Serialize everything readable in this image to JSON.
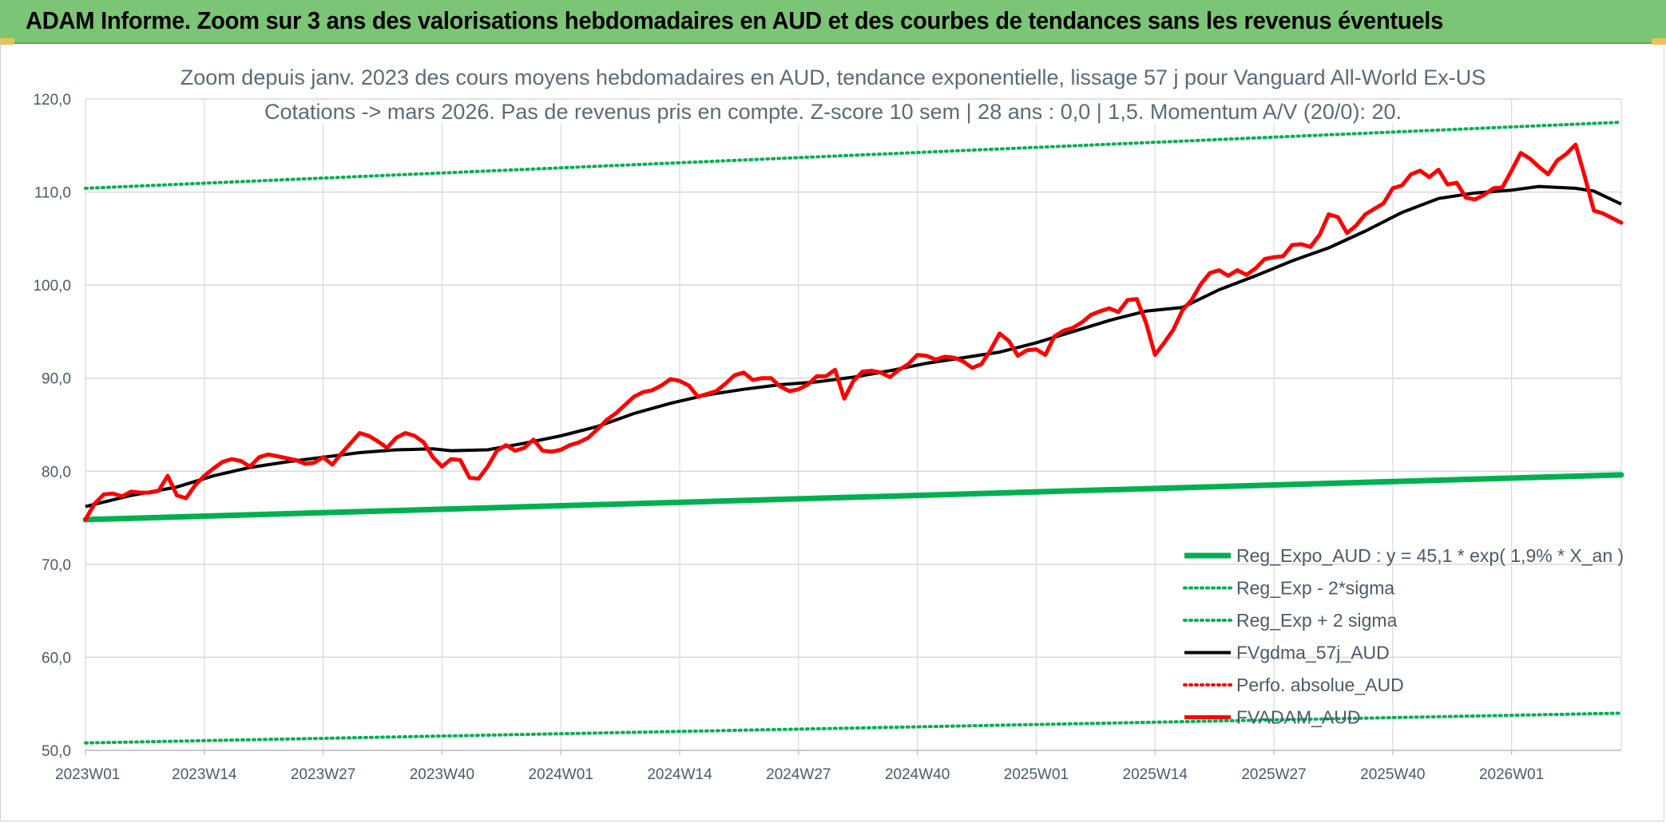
{
  "banner": {
    "title": "ADAM Informe. Zoom sur 3 ans des valorisations hebdomadaires en AUD et des courbes de tendances sans les revenus éventuels"
  },
  "colors": {
    "banner": "#7cc576",
    "trend_green": "#00b050",
    "dotted_green": "#00b050",
    "moving_avg": "#000000",
    "price_red": "#ff0000",
    "grid": "#d9d9d9",
    "axis_text": "#4a5a6a"
  },
  "chart_data": {
    "type": "line",
    "title_line1": "Zoom depuis janv. 2023 des cours moyens hebdomadaires en AUD, tendance exponentielle, lissage 57 j pour Vanguard All-World Ex-US",
    "title_line2": "Cotations -> mars 2026. Pas de revenus pris en compte. Z-score 10 sem | 28 ans : 0,0 | 1,5. Momentum A/V (20/0): 20.",
    "ylim": [
      50,
      120
    ],
    "yticks": [
      "50,0",
      "60,0",
      "70,0",
      "80,0",
      "90,0",
      "100,0",
      "110,0",
      "120,0"
    ],
    "ytick_values": [
      50,
      60,
      70,
      80,
      90,
      100,
      110,
      120
    ],
    "x_week_count": 169,
    "xtick_labels": [
      "2023W01",
      "2023W14",
      "2023W27",
      "2023W40",
      "2024W01",
      "2024W14",
      "2024W27",
      "2024W40",
      "2025W01",
      "2025W14",
      "2025W27",
      "2025W40",
      "2026W01"
    ],
    "xtick_index": [
      0,
      13,
      26,
      39,
      52,
      65,
      78,
      91,
      104,
      117,
      130,
      143,
      156
    ],
    "grid": true,
    "legend_position": "bottom-right",
    "series": [
      {
        "name": "Reg_Expo_AUD : y = 45,1 * exp( 1,9% *  X_an )",
        "style": "thick",
        "color": "#00b050",
        "points": [
          [
            0,
            74.8
          ],
          [
            168,
            79.6
          ]
        ]
      },
      {
        "name": "Reg_Exp - 2*sigma",
        "style": "dotted",
        "color": "#00b050",
        "points": [
          [
            0,
            50.8
          ],
          [
            168,
            54.0
          ]
        ]
      },
      {
        "name": "Reg_Exp + 2 sigma",
        "style": "dotted",
        "color": "#00b050",
        "points": [
          [
            0,
            110.4
          ],
          [
            168,
            117.5
          ]
        ]
      },
      {
        "name": "FVgdma_57j_AUD",
        "style": "solid",
        "color": "#000000",
        "points": [
          [
            0,
            76.2
          ],
          [
            5,
            77.4
          ],
          [
            10,
            78.3
          ],
          [
            14,
            79.5
          ],
          [
            18,
            80.4
          ],
          [
            22,
            81.0
          ],
          [
            26,
            81.5
          ],
          [
            30,
            82.0
          ],
          [
            34,
            82.3
          ],
          [
            38,
            82.4
          ],
          [
            40,
            82.2
          ],
          [
            44,
            82.3
          ],
          [
            48,
            83.0
          ],
          [
            52,
            83.8
          ],
          [
            56,
            84.8
          ],
          [
            60,
            86.2
          ],
          [
            64,
            87.3
          ],
          [
            68,
            88.2
          ],
          [
            72,
            88.8
          ],
          [
            76,
            89.3
          ],
          [
            80,
            89.6
          ],
          [
            84,
            90.1
          ],
          [
            88,
            90.8
          ],
          [
            92,
            91.6
          ],
          [
            96,
            92.2
          ],
          [
            100,
            92.8
          ],
          [
            104,
            93.8
          ],
          [
            108,
            95.0
          ],
          [
            112,
            96.2
          ],
          [
            116,
            97.2
          ],
          [
            120,
            97.6
          ],
          [
            124,
            99.5
          ],
          [
            128,
            101.0
          ],
          [
            132,
            102.6
          ],
          [
            136,
            104.0
          ],
          [
            140,
            105.8
          ],
          [
            144,
            107.8
          ],
          [
            148,
            109.3
          ],
          [
            152,
            109.9
          ],
          [
            156,
            110.2
          ],
          [
            159,
            110.6
          ],
          [
            163,
            110.4
          ],
          [
            165,
            110.1
          ],
          [
            168,
            108.7
          ]
        ]
      },
      {
        "name": "Perfo. absolue_AUD",
        "style": "dotted",
        "color": "#ff0000",
        "points": []
      },
      {
        "name": "FVADAM_AUD",
        "style": "thick",
        "color": "#ff0000",
        "points": [
          [
            0,
            74.8
          ],
          [
            1,
            76.5
          ],
          [
            2,
            77.5
          ],
          [
            3,
            77.6
          ],
          [
            4,
            77.3
          ],
          [
            5,
            77.8
          ],
          [
            6,
            77.7
          ],
          [
            7,
            77.7
          ],
          [
            8,
            77.9
          ],
          [
            9,
            79.5
          ],
          [
            10,
            77.4
          ],
          [
            11,
            77.1
          ],
          [
            12,
            78.5
          ],
          [
            13,
            79.5
          ],
          [
            14,
            80.3
          ],
          [
            15,
            81.0
          ],
          [
            16,
            81.3
          ],
          [
            17,
            81.1
          ],
          [
            18,
            80.5
          ],
          [
            19,
            81.5
          ],
          [
            20,
            81.8
          ],
          [
            21,
            81.6
          ],
          [
            22,
            81.4
          ],
          [
            23,
            81.2
          ],
          [
            24,
            80.8
          ],
          [
            25,
            80.9
          ],
          [
            26,
            81.5
          ],
          [
            27,
            80.7
          ],
          [
            28,
            81.9
          ],
          [
            29,
            83.0
          ],
          [
            30,
            84.1
          ],
          [
            31,
            83.8
          ],
          [
            32,
            83.2
          ],
          [
            33,
            82.5
          ],
          [
            34,
            83.6
          ],
          [
            35,
            84.1
          ],
          [
            36,
            83.8
          ],
          [
            37,
            83.1
          ],
          [
            38,
            81.5
          ],
          [
            39,
            80.5
          ],
          [
            40,
            81.3
          ],
          [
            41,
            81.2
          ],
          [
            42,
            79.3
          ],
          [
            43,
            79.2
          ],
          [
            44,
            80.5
          ],
          [
            45,
            82.2
          ],
          [
            46,
            82.8
          ],
          [
            47,
            82.2
          ],
          [
            48,
            82.5
          ],
          [
            49,
            83.4
          ],
          [
            50,
            82.2
          ],
          [
            51,
            82.1
          ],
          [
            52,
            82.3
          ],
          [
            53,
            82.8
          ],
          [
            54,
            83.1
          ],
          [
            55,
            83.6
          ],
          [
            56,
            84.5
          ],
          [
            57,
            85.5
          ],
          [
            58,
            86.2
          ],
          [
            59,
            87.1
          ],
          [
            60,
            88.0
          ],
          [
            61,
            88.5
          ],
          [
            62,
            88.7
          ],
          [
            63,
            89.2
          ],
          [
            64,
            89.9
          ],
          [
            65,
            89.7
          ],
          [
            66,
            89.2
          ],
          [
            67,
            88.0
          ],
          [
            68,
            88.3
          ],
          [
            69,
            88.6
          ],
          [
            70,
            89.4
          ],
          [
            71,
            90.3
          ],
          [
            72,
            90.6
          ],
          [
            73,
            89.8
          ],
          [
            74,
            90.0
          ],
          [
            75,
            90.0
          ],
          [
            76,
            89.1
          ],
          [
            77,
            88.6
          ],
          [
            78,
            88.8
          ],
          [
            79,
            89.3
          ],
          [
            80,
            90.2
          ],
          [
            81,
            90.2
          ],
          [
            82,
            90.9
          ],
          [
            83,
            87.8
          ],
          [
            84,
            89.7
          ],
          [
            85,
            90.7
          ],
          [
            86,
            90.8
          ],
          [
            87,
            90.6
          ],
          [
            88,
            90.1
          ],
          [
            89,
            90.9
          ],
          [
            90,
            91.5
          ],
          [
            91,
            92.5
          ],
          [
            92,
            92.4
          ],
          [
            93,
            92.0
          ],
          [
            94,
            92.3
          ],
          [
            95,
            92.2
          ],
          [
            96,
            91.8
          ],
          [
            97,
            91.1
          ],
          [
            98,
            91.5
          ],
          [
            99,
            93.0
          ],
          [
            100,
            94.8
          ],
          [
            101,
            94.0
          ],
          [
            102,
            92.4
          ],
          [
            103,
            93.0
          ],
          [
            104,
            93.1
          ],
          [
            105,
            92.5
          ],
          [
            106,
            94.5
          ],
          [
            107,
            95.1
          ],
          [
            108,
            95.4
          ],
          [
            109,
            96.0
          ],
          [
            110,
            96.8
          ],
          [
            111,
            97.2
          ],
          [
            112,
            97.5
          ],
          [
            113,
            97.1
          ],
          [
            114,
            98.4
          ],
          [
            115,
            98.5
          ],
          [
            116,
            96.0
          ],
          [
            117,
            92.5
          ],
          [
            118,
            93.8
          ],
          [
            119,
            95.2
          ],
          [
            120,
            97.3
          ],
          [
            121,
            98.4
          ],
          [
            122,
            100.1
          ],
          [
            123,
            101.3
          ],
          [
            124,
            101.6
          ],
          [
            125,
            101.0
          ],
          [
            126,
            101.6
          ],
          [
            127,
            101.1
          ],
          [
            128,
            101.8
          ],
          [
            129,
            102.8
          ],
          [
            130,
            103.0
          ],
          [
            131,
            103.1
          ],
          [
            132,
            104.3
          ],
          [
            133,
            104.4
          ],
          [
            134,
            104.1
          ],
          [
            135,
            105.4
          ],
          [
            136,
            107.6
          ],
          [
            137,
            107.3
          ],
          [
            138,
            105.6
          ],
          [
            139,
            106.4
          ],
          [
            140,
            107.6
          ],
          [
            141,
            108.2
          ],
          [
            142,
            108.8
          ],
          [
            143,
            110.4
          ],
          [
            144,
            110.7
          ],
          [
            145,
            111.9
          ],
          [
            146,
            112.3
          ],
          [
            147,
            111.6
          ],
          [
            148,
            112.4
          ],
          [
            149,
            110.8
          ],
          [
            150,
            111.0
          ],
          [
            151,
            109.4
          ],
          [
            152,
            109.2
          ],
          [
            153,
            109.7
          ],
          [
            154,
            110.4
          ],
          [
            155,
            110.5
          ],
          [
            156,
            112.3
          ],
          [
            157,
            114.2
          ],
          [
            158,
            113.6
          ],
          [
            159,
            112.7
          ],
          [
            160,
            111.9
          ],
          [
            161,
            113.4
          ],
          [
            162,
            114.1
          ],
          [
            163,
            115.1
          ],
          [
            164,
            111.7
          ],
          [
            165,
            108.0
          ],
          [
            166,
            107.7
          ],
          [
            167,
            107.2
          ],
          [
            168,
            106.7
          ]
        ]
      }
    ]
  }
}
